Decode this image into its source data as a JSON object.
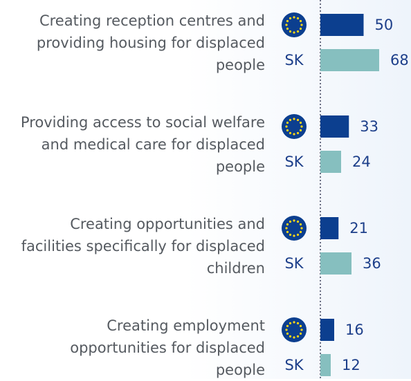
{
  "chart_data": {
    "type": "bar",
    "orientation": "horizontal",
    "categories": [
      "Creating reception centres and\nproviding housing for displaced\npeople",
      "Providing access to social welfare\nand medical care for displaced\npeople",
      "Creating opportunities and\nfacilities specifically for displaced\nchildren",
      "Creating employment\nopportunities for displaced\npeople"
    ],
    "series": [
      {
        "color": "#0c3f8f",
        "values": [
          50,
          33,
          21,
          16
        ]
      },
      {
        "name": "SK",
        "color": "#86bfbf",
        "values": [
          68,
          24,
          36,
          12
        ]
      }
    ]
  }
}
